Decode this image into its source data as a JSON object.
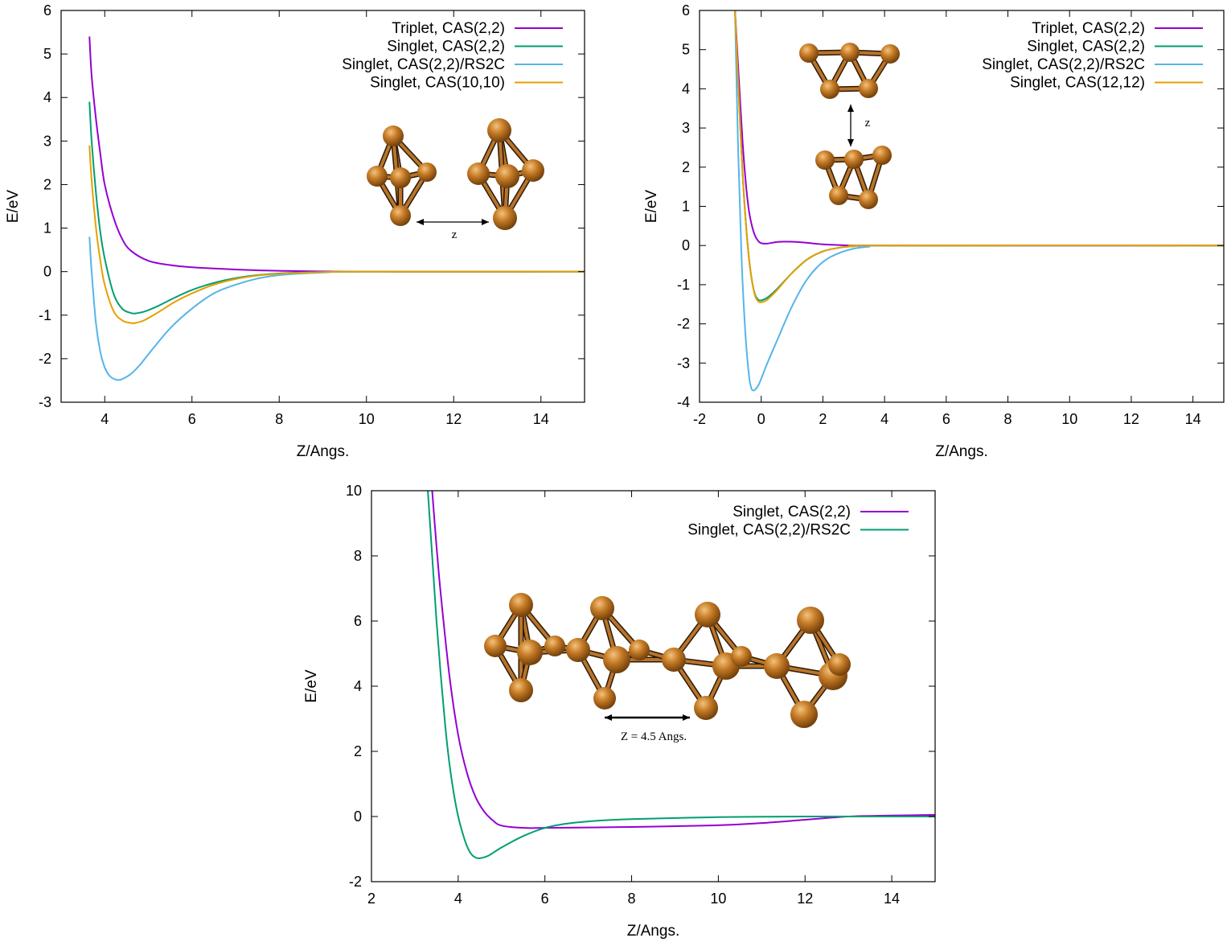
{
  "chart_data": [
    {
      "type": "line",
      "xlabel": "Z/Angs.",
      "ylabel": "E/eV",
      "xlim": [
        3,
        15
      ],
      "ylim": [
        -3,
        6
      ],
      "xticks": [
        4,
        6,
        8,
        10,
        12,
        14
      ],
      "yticks": [
        -3,
        -2,
        -1,
        0,
        1,
        2,
        3,
        4,
        5,
        6
      ],
      "legend_position": "top-right",
      "grid": false,
      "annotation": "Z",
      "series": [
        {
          "name": "Triplet, CAS(2,2)",
          "color": "#9400d3",
          "x": [
            3.65,
            3.7,
            3.8,
            3.9,
            4.0,
            4.2,
            4.4,
            4.6,
            5.0,
            5.5,
            6.0,
            7.0,
            8.0,
            10.0,
            15.0
          ],
          "y": [
            5.4,
            4.5,
            3.5,
            2.7,
            2.0,
            1.25,
            0.75,
            0.48,
            0.25,
            0.15,
            0.1,
            0.05,
            0.02,
            0.0,
            0.0
          ]
        },
        {
          "name": "Singlet, CAS(2,2)",
          "color": "#009e73",
          "x": [
            3.65,
            3.7,
            3.8,
            3.9,
            4.0,
            4.2,
            4.4,
            4.6,
            4.7,
            4.9,
            5.2,
            5.6,
            6.0,
            6.5,
            7.0,
            7.5,
            8.0,
            9.0,
            10.0,
            15.0
          ],
          "y": [
            3.9,
            3.0,
            1.8,
            0.9,
            0.3,
            -0.5,
            -0.85,
            -0.95,
            -0.96,
            -0.92,
            -0.8,
            -0.6,
            -0.42,
            -0.26,
            -0.15,
            -0.08,
            -0.04,
            -0.01,
            0.0,
            0.0
          ]
        },
        {
          "name": "Singlet, CAS(2,2)/RS2C",
          "color": "#56b4e9",
          "x": [
            3.65,
            3.7,
            3.8,
            3.9,
            4.0,
            4.1,
            4.2,
            4.3,
            4.4,
            4.6,
            4.8,
            5.0,
            5.5,
            6.0,
            6.5,
            7.0,
            7.5,
            8.0,
            9.0,
            10.0,
            15.0
          ],
          "y": [
            0.8,
            0.0,
            -1.2,
            -1.85,
            -2.2,
            -2.38,
            -2.46,
            -2.49,
            -2.47,
            -2.35,
            -2.15,
            -1.9,
            -1.3,
            -0.85,
            -0.5,
            -0.3,
            -0.16,
            -0.08,
            -0.02,
            0.0,
            0.0
          ]
        },
        {
          "name": "Singlet, CAS(10,10)",
          "color": "#e69f00",
          "x": [
            3.65,
            3.7,
            3.8,
            3.9,
            4.0,
            4.2,
            4.4,
            4.6,
            4.7,
            4.9,
            5.2,
            5.6,
            6.0,
            6.5,
            7.0,
            7.5,
            8.0,
            9.0,
            10.0,
            15.0
          ],
          "y": [
            2.9,
            2.1,
            1.0,
            0.25,
            -0.3,
            -0.9,
            -1.12,
            -1.18,
            -1.18,
            -1.12,
            -0.95,
            -0.7,
            -0.5,
            -0.3,
            -0.17,
            -0.09,
            -0.05,
            -0.01,
            0.0,
            0.0
          ]
        }
      ]
    },
    {
      "type": "line",
      "xlabel": "Z/Angs.",
      "ylabel": "E/eV",
      "xlim": [
        -2,
        15
      ],
      "ylim": [
        -4,
        6
      ],
      "xticks": [
        -2,
        0,
        2,
        4,
        6,
        8,
        10,
        12,
        14
      ],
      "yticks": [
        -4,
        -3,
        -2,
        -1,
        0,
        1,
        2,
        3,
        4,
        5,
        6
      ],
      "legend_position": "top-right",
      "grid": false,
      "annotation": "Z",
      "series": [
        {
          "name": "Triplet, CAS(2,2)",
          "color": "#9400d3",
          "x": [
            -0.85,
            -0.75,
            -0.6,
            -0.5,
            -0.4,
            -0.3,
            -0.2,
            -0.1,
            0.0,
            0.2,
            0.5,
            0.8,
            1.2,
            1.6,
            2.0,
            3.0,
            4.0,
            15.0
          ],
          "y": [
            6.0,
            4.6,
            2.6,
            1.6,
            0.9,
            0.5,
            0.25,
            0.12,
            0.06,
            0.05,
            0.09,
            0.1,
            0.09,
            0.06,
            0.03,
            0.0,
            0.0,
            0.0
          ]
        },
        {
          "name": "Singlet, CAS(2,2)",
          "color": "#009e73",
          "x": [
            -0.85,
            -0.75,
            -0.6,
            -0.5,
            -0.4,
            -0.3,
            -0.2,
            -0.1,
            0.0,
            0.2,
            0.5,
            1.0,
            1.5,
            2.0,
            2.5,
            3.0,
            4.0,
            15.0
          ],
          "y": [
            6.0,
            4.2,
            1.8,
            0.6,
            -0.3,
            -0.9,
            -1.25,
            -1.38,
            -1.4,
            -1.33,
            -1.12,
            -0.7,
            -0.35,
            -0.15,
            -0.06,
            -0.02,
            0.0,
            0.0
          ]
        },
        {
          "name": "Singlet, CAS(2,2)/RS2C",
          "color": "#56b4e9",
          "x": [
            -0.85,
            -0.75,
            -0.65,
            -0.6,
            -0.5,
            -0.4,
            -0.35,
            -0.3,
            -0.25,
            -0.2,
            -0.1,
            0.0,
            0.2,
            0.5,
            1.0,
            1.5,
            2.0,
            2.5,
            3.0,
            3.5,
            4.0,
            15.0
          ],
          "y": [
            6.0,
            2.5,
            0.0,
            -1.0,
            -2.4,
            -3.3,
            -3.55,
            -3.68,
            -3.7,
            -3.68,
            -3.58,
            -3.4,
            -3.0,
            -2.45,
            -1.55,
            -0.85,
            -0.42,
            -0.2,
            -0.08,
            -0.03,
            0.0,
            0.0
          ]
        },
        {
          "name": "Singlet, CAS(12,12)",
          "color": "#e69f00",
          "x": [
            -0.85,
            -0.75,
            -0.6,
            -0.5,
            -0.4,
            -0.3,
            -0.2,
            -0.1,
            0.0,
            0.2,
            0.5,
            1.0,
            1.5,
            2.0,
            2.5,
            3.0,
            4.0,
            15.0
          ],
          "y": [
            6.0,
            4.2,
            1.8,
            0.6,
            -0.3,
            -0.9,
            -1.28,
            -1.42,
            -1.45,
            -1.38,
            -1.15,
            -0.7,
            -0.35,
            -0.15,
            -0.06,
            -0.02,
            0.0,
            0.0
          ]
        }
      ]
    },
    {
      "type": "line",
      "xlabel": "Z/Angs.",
      "ylabel": "E/eV",
      "xlim": [
        2,
        15
      ],
      "ylim": [
        -2,
        10
      ],
      "xticks": [
        2,
        4,
        6,
        8,
        10,
        12,
        14
      ],
      "yticks": [
        -2,
        0,
        2,
        4,
        6,
        8,
        10
      ],
      "legend_position": "top-right",
      "grid": false,
      "annotation": "Z = 4.5 Angs.",
      "series": [
        {
          "name": "Singlet, CAS(2,2)",
          "color": "#9400d3",
          "x": [
            3.4,
            3.5,
            3.6,
            3.8,
            4.0,
            4.2,
            4.4,
            4.6,
            4.8,
            5.0,
            5.5,
            6.0,
            8.0,
            10.0,
            11.0,
            12.0,
            13.0,
            14.0,
            15.0
          ],
          "y": [
            10.0,
            8.3,
            6.8,
            4.3,
            2.5,
            1.35,
            0.6,
            0.15,
            -0.12,
            -0.28,
            -0.35,
            -0.35,
            -0.32,
            -0.27,
            -0.2,
            -0.1,
            0.0,
            0.03,
            0.05
          ]
        },
        {
          "name": "Singlet, CAS(2,2)/RS2C",
          "color": "#009e73",
          "x": [
            3.3,
            3.4,
            3.5,
            3.6,
            3.7,
            3.8,
            3.9,
            4.0,
            4.1,
            4.2,
            4.3,
            4.4,
            4.5,
            4.7,
            5.0,
            5.5,
            6.0,
            6.5,
            7.0,
            8.0,
            10.0,
            12.0,
            13.0,
            15.0
          ],
          "y": [
            10.0,
            8.0,
            6.0,
            4.3,
            2.8,
            1.6,
            0.7,
            0.0,
            -0.5,
            -0.9,
            -1.15,
            -1.26,
            -1.28,
            -1.2,
            -0.95,
            -0.6,
            -0.35,
            -0.22,
            -0.15,
            -0.08,
            -0.02,
            0.0,
            0.0,
            0.0
          ]
        }
      ]
    }
  ]
}
